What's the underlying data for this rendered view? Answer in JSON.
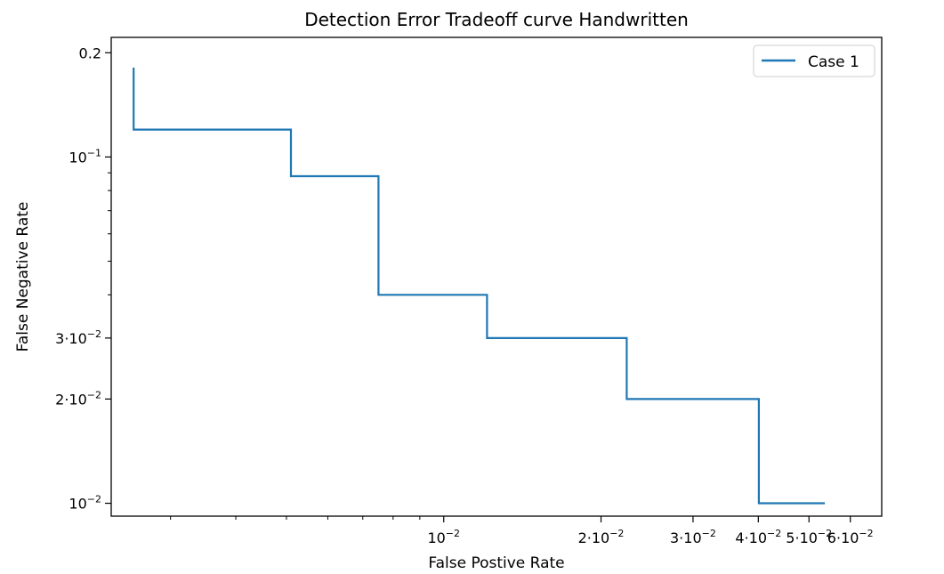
{
  "chart_data": {
    "type": "line",
    "title": "Detection Error Tradeoff curve Handwritten",
    "xlabel": "False Postive Rate",
    "ylabel": "False Negative Rate",
    "xscale": "log",
    "yscale": "log",
    "xlim": [
      0.00231,
      0.0689
    ],
    "ylim": [
      0.00918,
      0.2215
    ],
    "grid": false,
    "legend": {
      "position": "top-right",
      "entries": [
        "Case 1"
      ]
    },
    "x_ticks": [
      {
        "value": 0.01,
        "mantissa": "",
        "exp": "−2"
      },
      {
        "value": 0.02,
        "mantissa": "2·",
        "exp": "−2"
      },
      {
        "value": 0.03,
        "mantissa": "3·",
        "exp": "−2"
      },
      {
        "value": 0.04,
        "mantissa": "4·",
        "exp": "−2"
      },
      {
        "value": 0.05,
        "mantissa": "5·",
        "exp": "−2"
      },
      {
        "value": 0.06,
        "mantissa": "6·",
        "exp": "−2"
      }
    ],
    "y_ticks": [
      {
        "value": 0.2,
        "plain": "0.2"
      },
      {
        "value": 0.1,
        "mantissa": "",
        "exp": "−1"
      },
      {
        "value": 0.03,
        "mantissa": "3·",
        "exp": "−2"
      },
      {
        "value": 0.02,
        "mantissa": "2·",
        "exp": "−2"
      },
      {
        "value": 0.01,
        "mantissa": "",
        "exp": "−2"
      }
    ],
    "series": [
      {
        "name": "Case 1",
        "color": "#1f77b4",
        "x": [
          0.00255,
          0.00255,
          0.0051,
          0.0051,
          0.0075,
          0.0075,
          0.0121,
          0.0121,
          0.0224,
          0.0224,
          0.0401,
          0.0401,
          0.0534
        ],
        "y": [
          0.18,
          0.12,
          0.12,
          0.088,
          0.088,
          0.04,
          0.04,
          0.03,
          0.03,
          0.02,
          0.02,
          0.01,
          0.01
        ]
      }
    ]
  }
}
